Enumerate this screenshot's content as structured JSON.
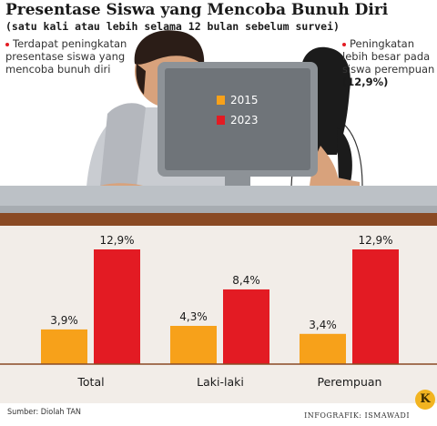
{
  "title": "Presentase Siswa yang Mencoba Bunuh Diri",
  "subtitle": "(satu kali atau lebih selama 12 bulan sebelum survei)",
  "notes": {
    "left": "Terdapat peningkatan presentase siswa yang mencoba bunuh diri",
    "right_text": "Peningkatan lebih besar pada siswa perempuan",
    "right_value": "(12,9%)"
  },
  "source": "Sumber: Diolah TAN",
  "credit": "INFOGRAFIK: ISMAWADI",
  "logo_letter": "K",
  "colors": {
    "s2015": "#f7a11a",
    "s2023": "#e31b23",
    "wood": "#8a4a24",
    "floor": "#f2ede8"
  },
  "chart_data": {
    "type": "bar",
    "categories": [
      "Total",
      "Laki-laki",
      "Perempuan"
    ],
    "series": [
      {
        "name": "2015",
        "values": [
          3.9,
          4.3,
          3.4
        ],
        "labels": [
          "3,9%",
          "4,3%",
          "3,4%"
        ],
        "color": "#f7a11a"
      },
      {
        "name": "2023",
        "values": [
          12.9,
          8.4,
          12.9
        ],
        "labels": [
          "12,9%",
          "8,4%",
          "12,9%"
        ],
        "color": "#e31b23"
      }
    ],
    "unit": "%",
    "ylim": [
      0,
      12.9
    ],
    "legend_position": "on-screen",
    "grid": false
  }
}
